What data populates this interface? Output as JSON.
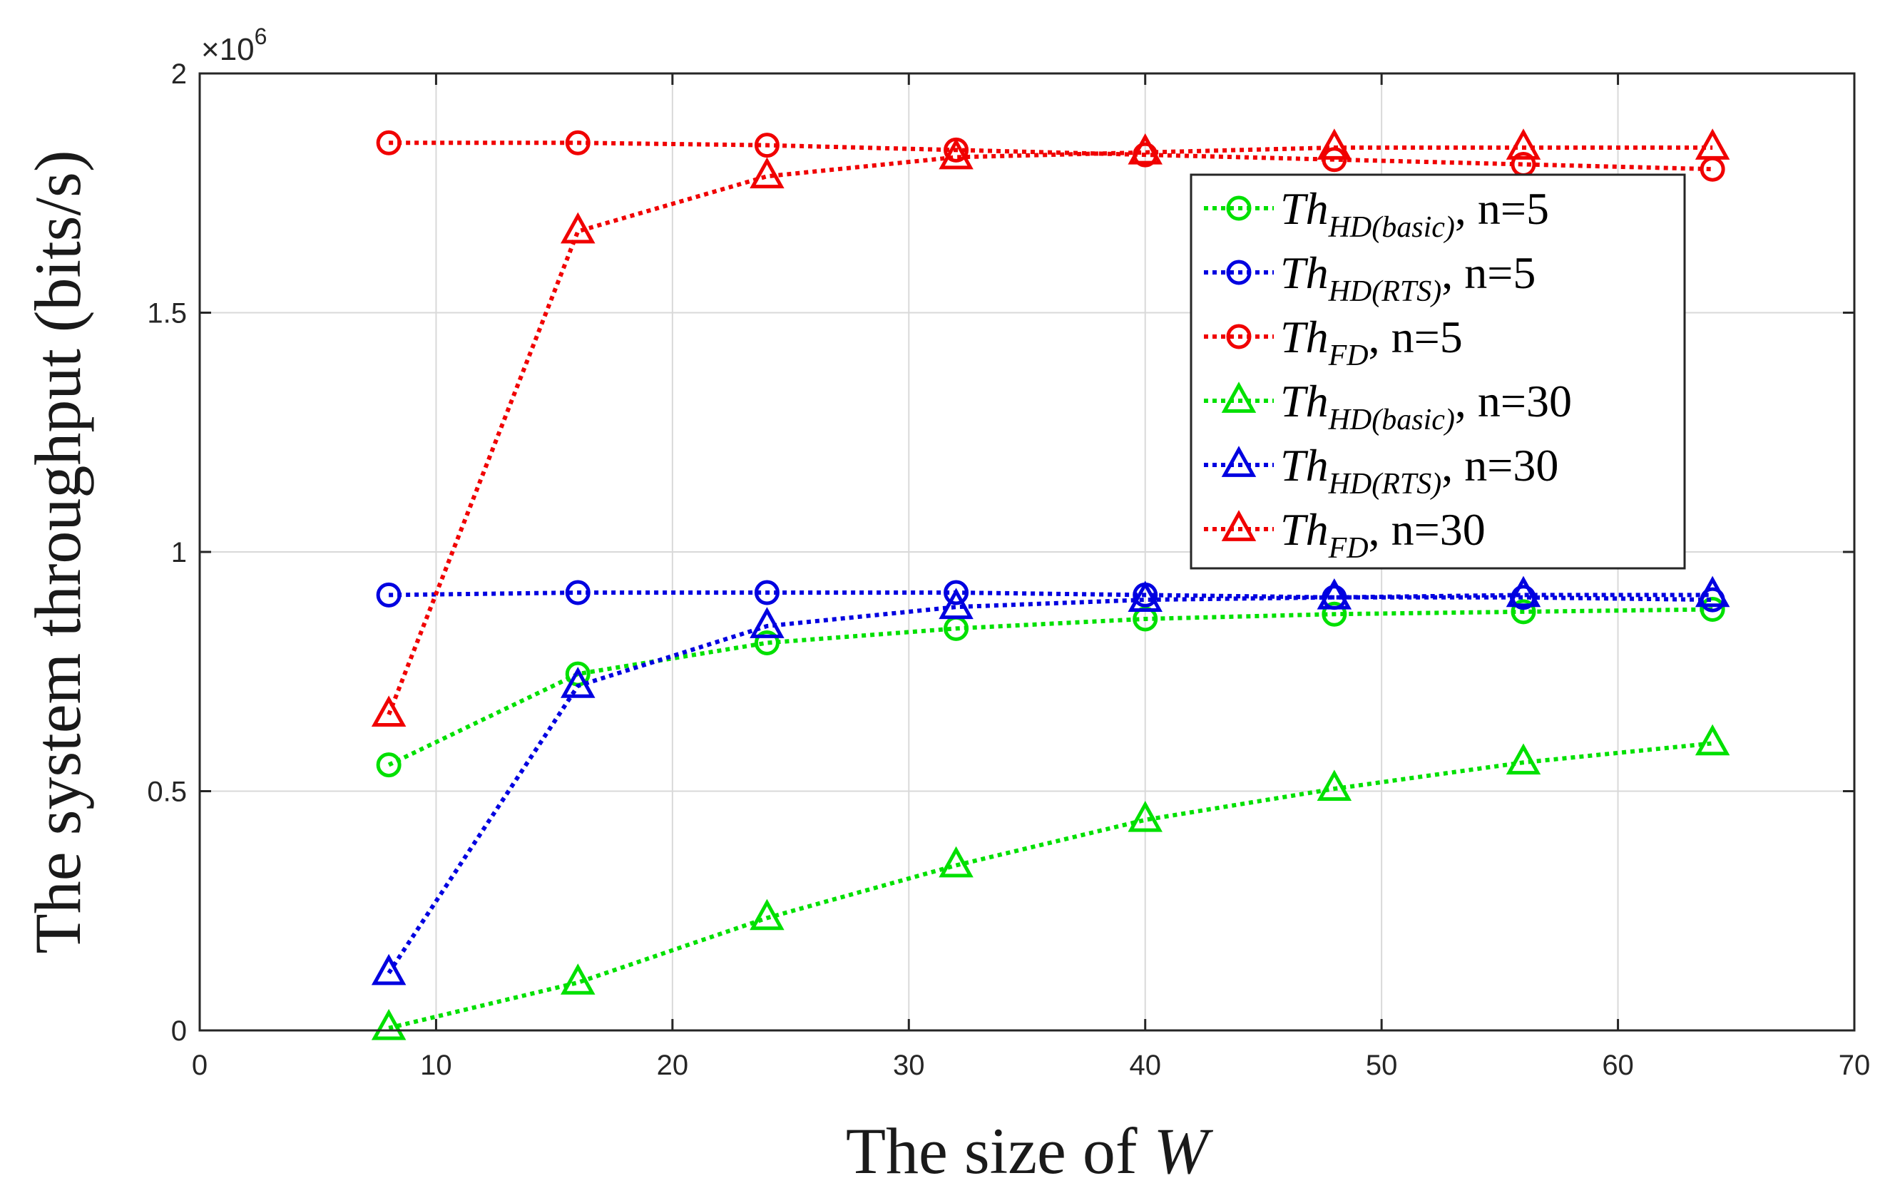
{
  "chart_data": {
    "type": "line",
    "title": "",
    "xlabel": "The size of",
    "xlabel_var": "W",
    "ylabel": "The system throughput (bits/s)",
    "y_multiplier_base": "×10",
    "y_multiplier_exp": "6",
    "xlim": [
      0,
      70
    ],
    "ylim": [
      0,
      2
    ],
    "xticks": [
      0,
      10,
      20,
      30,
      40,
      50,
      60,
      70
    ],
    "xtick_labels": [
      "0",
      "10",
      "20",
      "30",
      "40",
      "50",
      "60",
      "70"
    ],
    "yticks": [
      0,
      0.5,
      1,
      1.5,
      2
    ],
    "ytick_labels": [
      "0",
      "0.5",
      "1",
      "1.5",
      "2"
    ],
    "grid": true,
    "legend_position": "top-right",
    "x": [
      8,
      16,
      24,
      32,
      40,
      48,
      56,
      64
    ],
    "series": [
      {
        "name": "Th_HD(basic), n=5",
        "legend_main": "Th",
        "legend_sub": "HD(basic)",
        "legend_n": ", n=5",
        "color": "#00e000",
        "marker": "circle",
        "values": [
          0.555,
          0.745,
          0.81,
          0.84,
          0.86,
          0.87,
          0.875,
          0.88
        ]
      },
      {
        "name": "Th_HD(RTS), n=5",
        "legend_main": "Th",
        "legend_sub": "HD(RTS)",
        "legend_n": ", n=5",
        "color": "#0000e0",
        "marker": "circle",
        "values": [
          0.91,
          0.915,
          0.915,
          0.915,
          0.91,
          0.905,
          0.905,
          0.9
        ]
      },
      {
        "name": "Th_FD, n=5",
        "legend_main": "Th",
        "legend_sub": "FD",
        "legend_n": ", n=5",
        "color": "#f00000",
        "marker": "circle",
        "values": [
          1.855,
          1.855,
          1.85,
          1.84,
          1.83,
          1.82,
          1.81,
          1.8
        ]
      },
      {
        "name": "Th_HD(basic), n=30",
        "legend_main": "Th",
        "legend_sub": "HD(basic)",
        "legend_n": ", n=30",
        "color": "#00e000",
        "marker": "triangle",
        "values": [
          0.005,
          0.1,
          0.235,
          0.345,
          0.44,
          0.505,
          0.56,
          0.6
        ]
      },
      {
        "name": "Th_HD(RTS), n=30",
        "legend_main": "Th",
        "legend_sub": "HD(RTS)",
        "legend_n": ", n=30",
        "color": "#0000e0",
        "marker": "triangle",
        "values": [
          0.12,
          0.72,
          0.845,
          0.885,
          0.9,
          0.905,
          0.91,
          0.91
        ]
      },
      {
        "name": "Th_FD, n=30",
        "legend_main": "Th",
        "legend_sub": "FD",
        "legend_n": ", n=30",
        "color": "#f00000",
        "marker": "triangle",
        "values": [
          0.66,
          1.67,
          1.785,
          1.825,
          1.835,
          1.845,
          1.845,
          1.845
        ]
      }
    ]
  }
}
